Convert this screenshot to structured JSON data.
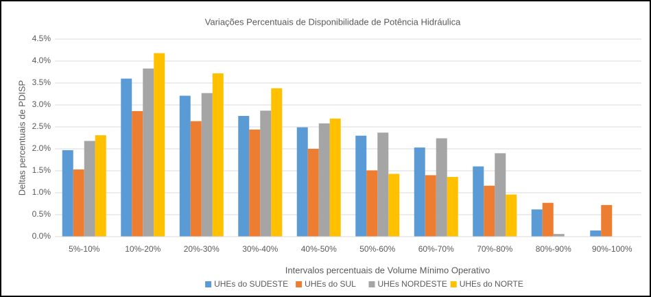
{
  "chart_data": {
    "type": "bar",
    "title": "Variações Percentuais de Disponibilidade de Potência Hidráulica",
    "x_label": "Intervalos percentuais de Volume Mínimo Operativo",
    "y_label": "Deltas percentuais de PDISP",
    "categories": [
      "5%-10%",
      "10%-20%",
      "20%-30%",
      "30%-40%",
      "40%-50%",
      "50%-60%",
      "60%-70%",
      "70%-80%",
      "80%-90%",
      "90%-100%"
    ],
    "series": [
      {
        "name": "UHEs do SUDESTE",
        "color": "#5b9bd5",
        "values": [
          1.97,
          3.6,
          3.21,
          2.75,
          2.49,
          2.3,
          2.03,
          1.6,
          0.62,
          0.14
        ]
      },
      {
        "name": "UHEs do SUL",
        "color": "#ed7d31",
        "values": [
          1.53,
          2.86,
          2.63,
          2.44,
          2.0,
          1.51,
          1.4,
          1.16,
          0.77,
          0.72
        ]
      },
      {
        "name": "UHEs NORDESTE",
        "color": "#a5a5a5",
        "values": [
          2.18,
          3.83,
          3.27,
          2.87,
          2.58,
          2.37,
          2.24,
          1.9,
          0.06,
          0
        ]
      },
      {
        "name": "UHEs do NORTE",
        "color": "#ffc000",
        "values": [
          2.31,
          4.18,
          3.72,
          3.38,
          2.69,
          1.43,
          1.36,
          0.96,
          0,
          0
        ]
      }
    ],
    "ylim": [
      0,
      4.5
    ],
    "yticks": [
      {
        "value": 0,
        "label": "0.0%"
      },
      {
        "value": 0.5,
        "label": "0.5%"
      },
      {
        "value": 1,
        "label": "1.0%"
      },
      {
        "value": 1.5,
        "label": "1.5%"
      },
      {
        "value": 2,
        "label": "2.0%"
      },
      {
        "value": 2.5,
        "label": "2.5%"
      },
      {
        "value": 3,
        "label": "3.0%"
      },
      {
        "value": 3.5,
        "label": "3.5%"
      },
      {
        "value": 4,
        "label": "4.0%"
      },
      {
        "value": 4.5,
        "label": "4.5%"
      }
    ],
    "grid": true,
    "legend": "bottom"
  }
}
